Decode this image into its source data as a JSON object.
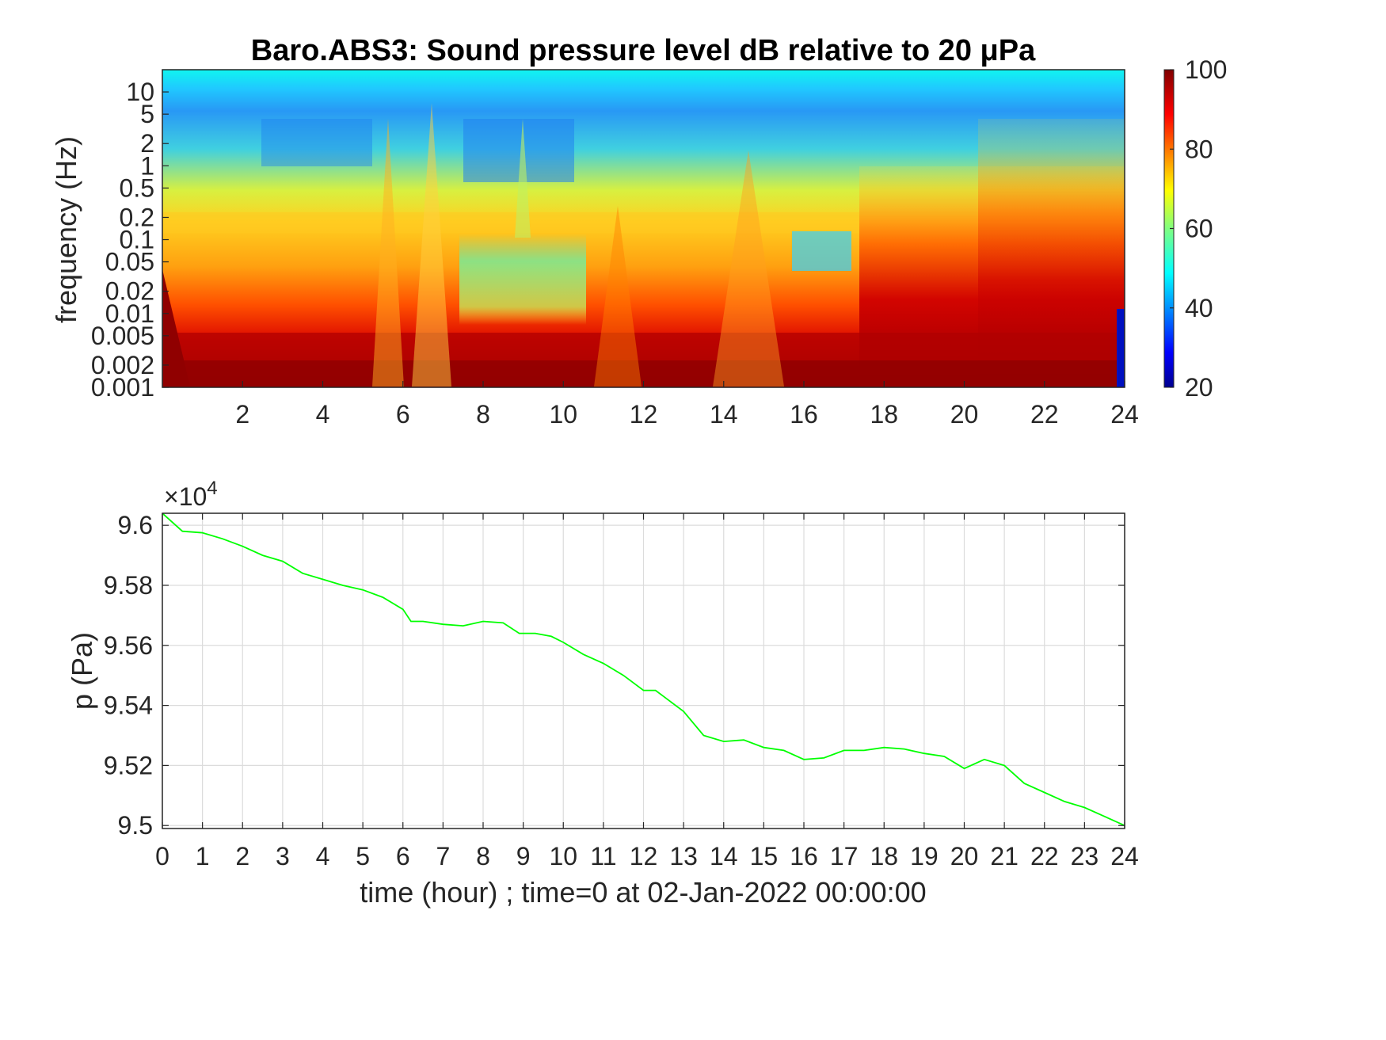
{
  "chart_data": [
    {
      "type": "heatmap",
      "title": "Baro.ABS3: Sound pressure level dB relative to 20 μPa",
      "ylabel": "frequency (Hz)",
      "xlabel": "",
      "x_ticks": [
        "2",
        "4",
        "6",
        "8",
        "10",
        "12",
        "14",
        "16",
        "18",
        "20",
        "22",
        "24"
      ],
      "xlim": [
        0,
        24
      ],
      "y_ticks": [
        "10",
        "5",
        "2",
        "1",
        "0.5",
        "0.2",
        "0.1",
        "0.05",
        "0.02",
        "0.01",
        "0.005",
        "0.002",
        "0.001"
      ],
      "y_tick_values": [
        10,
        5,
        2,
        1,
        0.5,
        0.2,
        0.1,
        0.05,
        0.02,
        0.01,
        0.005,
        0.002,
        0.001
      ],
      "ylim": [
        0.001,
        20
      ],
      "yscale": "log",
      "colormap": "jet",
      "colorbar_ticks": [
        "100",
        "80",
        "60",
        "40",
        "20"
      ],
      "clim": [
        20,
        100
      ],
      "regions": [
        {
          "t": [
            0,
            24
          ],
          "f": [
            0.001,
            0.005
          ],
          "level_db": 95
        },
        {
          "t": [
            0,
            17
          ],
          "f": [
            0.01,
            0.2
          ],
          "level_db": 75
        },
        {
          "t": [
            7.5,
            10.5
          ],
          "f": [
            0.01,
            0.1
          ],
          "level_db": 60
        },
        {
          "t": [
            17.5,
            24
          ],
          "f": [
            0.005,
            0.5
          ],
          "level_db": 92
        },
        {
          "t": [
            0,
            24
          ],
          "f": [
            0.3,
            5
          ],
          "level_db": 48
        },
        {
          "t": [
            0,
            24
          ],
          "f": [
            10,
            20
          ],
          "level_db": 52
        }
      ]
    },
    {
      "type": "line",
      "title": "",
      "xlabel": "time (hour) ; time=0 at 02-Jan-2022 00:00:00",
      "ylabel": "p (Pa)",
      "exponent_label": "×10",
      "exponent_power": "4",
      "xlim": [
        0,
        24
      ],
      "ylim": [
        94990,
        96040
      ],
      "x_ticks": [
        "0",
        "1",
        "2",
        "3",
        "4",
        "5",
        "6",
        "7",
        "8",
        "9",
        "10",
        "11",
        "12",
        "13",
        "14",
        "15",
        "16",
        "17",
        "18",
        "19",
        "20",
        "21",
        "22",
        "23",
        "24"
      ],
      "y_ticks": [
        "9.5",
        "9.52",
        "9.54",
        "9.56",
        "9.58",
        "9.6"
      ],
      "y_tick_values": [
        95000,
        95200,
        95400,
        95600,
        95800,
        96000
      ],
      "grid": true,
      "line_color": "#00ff00",
      "series": [
        {
          "x": [
            0,
            0.5,
            1,
            1.5,
            2,
            2.5,
            3,
            3.5,
            4,
            4.5,
            5,
            5.5,
            6,
            6.2,
            6.5,
            7,
            7.5,
            8,
            8.5,
            8.9,
            9.3,
            9.7,
            10,
            10.5,
            11,
            11.5,
            12,
            12.3,
            12.5,
            13,
            13.5,
            14,
            14.5,
            15,
            15.5,
            16,
            16.5,
            17,
            17.5,
            18,
            18.5,
            19,
            19.5,
            20,
            20.5,
            21,
            21.5,
            22,
            22.5,
            23,
            23.5,
            24
          ],
          "y": [
            96040,
            95980,
            95975,
            95955,
            95930,
            95900,
            95880,
            95840,
            95820,
            95800,
            95785,
            95760,
            95720,
            95680,
            95680,
            95670,
            95665,
            95680,
            95675,
            95640,
            95640,
            95630,
            95610,
            95570,
            95540,
            95500,
            95450,
            95450,
            95430,
            95380,
            95300,
            95280,
            95285,
            95260,
            95250,
            95220,
            95225,
            95250,
            95250,
            95260,
            95255,
            95240,
            95230,
            95190,
            95220,
            95200,
            95140,
            95110,
            95080,
            95060,
            95030,
            95000
          ]
        }
      ]
    }
  ]
}
